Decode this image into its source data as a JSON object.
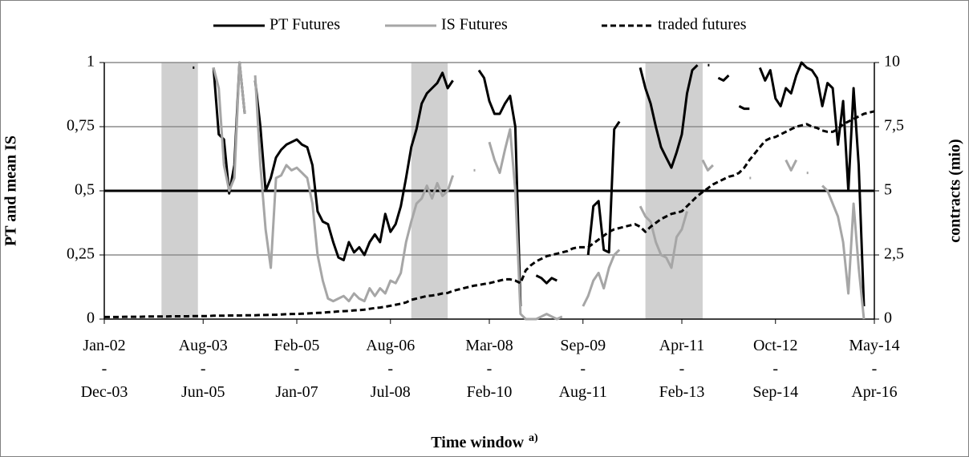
{
  "chart_data": {
    "type": "line",
    "xlabel": "Time window",
    "xlabel_note": "a)",
    "ylabel": "PT and mean IS",
    "y2label": "contracts (mio)",
    "legend": "top",
    "grid": true,
    "categories": [
      [
        "Jan-02",
        "-",
        "Dec-03"
      ],
      null,
      null,
      null,
      null,
      null,
      null,
      null,
      null,
      null,
      null,
      null,
      null,
      null,
      null,
      null,
      null,
      null,
      null,
      [
        "Aug-03",
        "-",
        "Jun-05"
      ],
      null,
      null,
      null,
      null,
      null,
      null,
      null,
      null,
      null,
      null,
      null,
      null,
      null,
      null,
      null,
      null,
      null,
      [
        "Feb-05",
        "-",
        "Jan-07"
      ],
      null,
      null,
      null,
      null,
      null,
      null,
      null,
      null,
      null,
      null,
      null,
      null,
      null,
      null,
      null,
      null,
      null,
      [
        "Aug-06",
        "-",
        "Jul-08"
      ],
      null,
      null,
      null,
      null,
      null,
      null,
      null,
      null,
      null,
      null,
      null,
      null,
      null,
      null,
      null,
      null,
      null,
      null,
      [
        "Mar-08",
        "-",
        "Feb-10"
      ],
      null,
      null,
      null,
      null,
      null,
      null,
      null,
      null,
      null,
      null,
      null,
      null,
      null,
      null,
      null,
      null,
      null,
      [
        "Sep-09",
        "-",
        "Aug-11"
      ],
      null,
      null,
      null,
      null,
      null,
      null,
      null,
      null,
      null,
      null,
      null,
      null,
      null,
      null,
      null,
      null,
      null,
      null,
      [
        "Apr-11",
        "-",
        "Feb-13"
      ],
      null,
      null,
      null,
      null,
      null,
      null,
      null,
      null,
      null,
      null,
      null,
      null,
      null,
      null,
      null,
      null,
      null,
      [
        "Oct-12",
        "-",
        "Sep-14"
      ],
      null,
      null,
      null,
      null,
      null,
      null,
      null,
      null,
      null,
      null,
      null,
      null,
      null,
      null,
      null,
      null,
      null,
      null,
      [
        "May-14",
        "-",
        "Apr-16"
      ]
    ],
    "shaded_ranges": [
      [
        11,
        18
      ],
      [
        59,
        66
      ],
      [
        104,
        115
      ]
    ],
    "shade_color": "#d0d0d0",
    "reference_line": 0.5,
    "ylim": [
      0,
      1
    ],
    "yticks": [
      0,
      {
        "value": 0.25,
        "label": "0,25"
      },
      {
        "value": 0.5,
        "label": "0,5"
      },
      {
        "value": 0.75,
        "label": "0,75"
      },
      1
    ],
    "y2lim": [
      0,
      10
    ],
    "y2ticks": [
      0,
      {
        "value": 2.5,
        "label": "2,5"
      },
      5,
      {
        "value": 7.5,
        "label": "7,5"
      },
      10
    ],
    "series": [
      {
        "name": "PT Futures",
        "color": "#000000",
        "line_style": "solid",
        "values": [
          null,
          null,
          null,
          null,
          null,
          null,
          null,
          null,
          null,
          null,
          null,
          null,
          null,
          null,
          null,
          null,
          null,
          0.98,
          null,
          null,
          null,
          0.98,
          0.72,
          0.7,
          0.49,
          0.6,
          1.0,
          0.8,
          null,
          0.93,
          0.75,
          0.5,
          0.55,
          0.63,
          0.66,
          0.68,
          0.69,
          0.7,
          0.68,
          0.67,
          0.6,
          0.42,
          0.38,
          0.37,
          0.3,
          0.24,
          0.23,
          0.3,
          0.26,
          0.28,
          0.25,
          0.3,
          0.33,
          0.3,
          0.41,
          0.34,
          0.37,
          0.44,
          0.55,
          0.67,
          0.74,
          0.84,
          0.88,
          0.9,
          0.92,
          0.96,
          0.9,
          0.93,
          null,
          null,
          null,
          null,
          0.97,
          0.94,
          0.85,
          0.8,
          0.8,
          0.84,
          0.87,
          0.75,
          0.05,
          null,
          null,
          0.17,
          0.16,
          0.14,
          0.16,
          0.15,
          null,
          null,
          null,
          null,
          null,
          0.25,
          0.44,
          0.46,
          0.27,
          0.26,
          0.74,
          0.77,
          null,
          null,
          null,
          0.98,
          0.9,
          0.84,
          0.75,
          0.67,
          0.63,
          0.59,
          0.65,
          0.72,
          0.88,
          0.97,
          0.99,
          null,
          0.99,
          null,
          0.94,
          0.93,
          0.95,
          null,
          0.83,
          0.82,
          0.82,
          null,
          0.98,
          0.93,
          0.97,
          0.86,
          0.83,
          0.9,
          0.88,
          0.95,
          1.0,
          0.98,
          0.97,
          0.94,
          0.83,
          0.92,
          0.9,
          0.68,
          0.85,
          0.5,
          0.9,
          0.6,
          0.05,
          null,
          null
        ]
      },
      {
        "name": "IS Futures",
        "color": "#a6a6a6",
        "line_style": "solid",
        "values": [
          null,
          null,
          null,
          null,
          null,
          null,
          null,
          null,
          null,
          null,
          null,
          null,
          null,
          null,
          null,
          null,
          null,
          null,
          null,
          null,
          null,
          0.98,
          0.9,
          0.6,
          0.5,
          0.55,
          1.0,
          0.8,
          null,
          0.95,
          0.6,
          0.35,
          0.2,
          0.55,
          0.56,
          0.6,
          0.58,
          0.59,
          0.57,
          0.55,
          0.45,
          0.25,
          0.15,
          0.08,
          0.07,
          0.08,
          0.09,
          0.07,
          0.1,
          0.08,
          0.07,
          0.12,
          0.09,
          0.12,
          0.1,
          0.15,
          0.14,
          0.18,
          0.3,
          0.38,
          0.45,
          0.47,
          0.52,
          0.47,
          0.53,
          0.48,
          0.5,
          0.56,
          null,
          null,
          null,
          0.58,
          null,
          null,
          0.69,
          0.62,
          0.57,
          0.66,
          0.74,
          0.5,
          0.02,
          0,
          0,
          0,
          0.01,
          0.02,
          0.01,
          0,
          0.01,
          null,
          null,
          null,
          0.05,
          0.09,
          0.15,
          0.18,
          0.12,
          0.2,
          0.25,
          0.27,
          null,
          null,
          null,
          0.44,
          0.4,
          0.38,
          0.3,
          0.25,
          0.24,
          0.2,
          0.32,
          0.35,
          0.42,
          null,
          null,
          0.62,
          0.58,
          0.6,
          null,
          null,
          null,
          null,
          null,
          null,
          0.55,
          null,
          null,
          null,
          null,
          null,
          null,
          0.62,
          0.58,
          0.62,
          null,
          0.57,
          null,
          null,
          0.52,
          0.5,
          0.45,
          0.4,
          0.3,
          0.1,
          0.45,
          0.2,
          0,
          null,
          null
        ]
      },
      {
        "name": "traded futures",
        "color": "#000000",
        "line_style": "dashed",
        "axis": "y2",
        "values": [
          0.08,
          0.08,
          0.08,
          0.08,
          0.09,
          0.09,
          0.09,
          0.09,
          0.1,
          0.1,
          0.1,
          0.1,
          0.1,
          0.11,
          0.11,
          0.11,
          0.11,
          0.12,
          0.12,
          0.12,
          0.12,
          0.13,
          0.13,
          0.13,
          0.14,
          0.14,
          0.14,
          0.15,
          0.15,
          0.15,
          0.16,
          0.16,
          0.17,
          0.17,
          0.18,
          0.19,
          0.2,
          0.2,
          0.21,
          0.22,
          0.23,
          0.24,
          0.25,
          0.27,
          0.28,
          0.3,
          0.31,
          0.32,
          0.34,
          0.35,
          0.37,
          0.4,
          0.43,
          0.45,
          0.48,
          0.52,
          0.56,
          0.6,
          0.65,
          0.75,
          0.8,
          0.85,
          0.9,
          0.92,
          0.95,
          1.0,
          1.02,
          1.1,
          1.15,
          1.2,
          1.25,
          1.3,
          1.33,
          1.37,
          1.4,
          1.45,
          1.5,
          1.55,
          1.55,
          1.5,
          1.4,
          1.9,
          2.1,
          2.25,
          2.35,
          2.45,
          2.5,
          2.55,
          2.6,
          2.65,
          2.75,
          2.8,
          2.8,
          2.8,
          2.95,
          3.1,
          3.25,
          3.4,
          3.5,
          3.55,
          3.6,
          3.65,
          3.7,
          3.6,
          3.4,
          3.6,
          3.75,
          3.9,
          4.0,
          4.1,
          4.15,
          4.2,
          4.4,
          4.6,
          4.8,
          4.95,
          5.1,
          5.25,
          5.35,
          5.45,
          5.55,
          5.6,
          5.7,
          5.9,
          6.2,
          6.45,
          6.7,
          6.95,
          7.05,
          7.1,
          7.2,
          7.3,
          7.4,
          7.5,
          7.55,
          7.6,
          7.5,
          7.45,
          7.35,
          7.3,
          7.3,
          7.4,
          7.6,
          7.7,
          7.8,
          7.9,
          8.0,
          8.05,
          8.1
        ]
      }
    ]
  }
}
